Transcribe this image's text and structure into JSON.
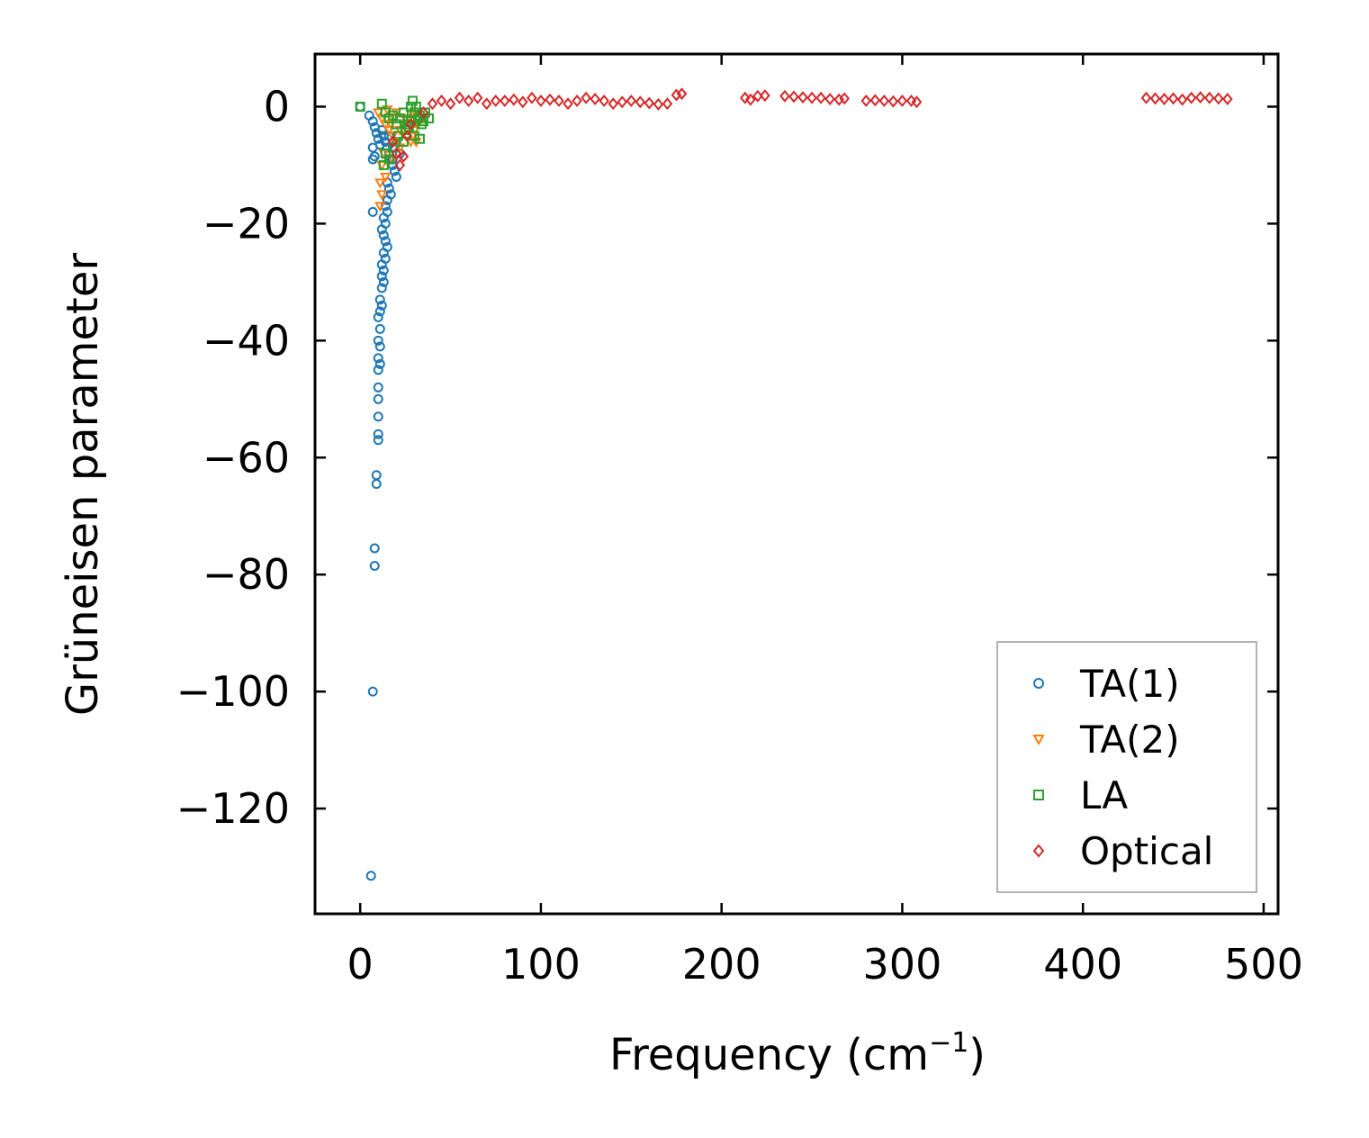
{
  "chart_data": {
    "type": "scatter",
    "xlabel": "Frequency (cm",
    "xlabel_exponent": "−1",
    "xlabel_suffix": ")",
    "ylabel": "Grüneisen parameter",
    "xlim": [
      -25,
      508
    ],
    "ylim": [
      -138,
      9
    ],
    "xticks": [
      0,
      100,
      200,
      300,
      400,
      500
    ],
    "yticks": [
      0,
      -20,
      -40,
      -60,
      -80,
      -100,
      -120
    ],
    "grid": false,
    "legend_position": "bottom-right",
    "series": [
      {
        "name": "TA(1)",
        "color": "#1f77b4",
        "marker": "circle",
        "points": [
          [
            0,
            0
          ],
          [
            5,
            -1.5
          ],
          [
            7,
            -2.5
          ],
          [
            8,
            -3.5
          ],
          [
            9,
            -4.5
          ],
          [
            10,
            -5.5
          ],
          [
            11,
            -6.5
          ],
          [
            7,
            -7
          ],
          [
            8,
            -8.5
          ],
          [
            7,
            -9
          ],
          [
            12,
            -4
          ],
          [
            13,
            -5
          ],
          [
            14,
            -6
          ],
          [
            15,
            -7
          ],
          [
            16,
            -8
          ],
          [
            17,
            -9
          ],
          [
            18,
            -10
          ],
          [
            19,
            -11
          ],
          [
            20,
            -12
          ],
          [
            15,
            -13
          ],
          [
            16,
            -14
          ],
          [
            17,
            -15
          ],
          [
            15,
            -16
          ],
          [
            14,
            -17
          ],
          [
            15,
            -18
          ],
          [
            13,
            -19
          ],
          [
            14,
            -20
          ],
          [
            12,
            -21
          ],
          [
            13,
            -22
          ],
          [
            14,
            -23
          ],
          [
            15,
            -24
          ],
          [
            13,
            -25
          ],
          [
            14,
            -26
          ],
          [
            12,
            -27
          ],
          [
            13,
            -28
          ],
          [
            12,
            -29
          ],
          [
            13,
            -30
          ],
          [
            12,
            -31
          ],
          [
            11,
            -33
          ],
          [
            12,
            -34
          ],
          [
            11,
            -35
          ],
          [
            10,
            -36
          ],
          [
            7,
            -18
          ],
          [
            11,
            -38
          ],
          [
            10,
            -40
          ],
          [
            11,
            -41
          ],
          [
            10,
            -43
          ],
          [
            11,
            -44
          ],
          [
            10,
            -45
          ],
          [
            10,
            -48
          ],
          [
            10,
            -50
          ],
          [
            10,
            -53
          ],
          [
            10,
            -56
          ],
          [
            10,
            -57
          ],
          [
            9,
            -63
          ],
          [
            9,
            -64.5
          ],
          [
            8,
            -75.5
          ],
          [
            8,
            -78.5
          ],
          [
            7,
            -100
          ],
          [
            6,
            -131.5
          ],
          [
            18,
            -9
          ],
          [
            22,
            -8
          ],
          [
            20,
            -6
          ],
          [
            16,
            -5
          ],
          [
            19,
            -7
          ]
        ]
      },
      {
        "name": "TA(2)",
        "color": "#ff7f0e",
        "marker": "triangle-down",
        "points": [
          [
            10,
            -1
          ],
          [
            12,
            -2
          ],
          [
            14,
            -3
          ],
          [
            16,
            -4
          ],
          [
            18,
            -5
          ],
          [
            20,
            -6
          ],
          [
            22,
            -4
          ],
          [
            24,
            -3
          ],
          [
            26,
            -5
          ],
          [
            28,
            -6
          ],
          [
            30,
            -4
          ],
          [
            32,
            -3
          ],
          [
            25,
            -2
          ],
          [
            20,
            -1
          ],
          [
            15,
            -0.5
          ],
          [
            13,
            -8
          ],
          [
            12,
            -10
          ],
          [
            11,
            -13
          ],
          [
            12,
            -15
          ],
          [
            11,
            -17
          ],
          [
            14,
            -12
          ],
          [
            18,
            -9
          ],
          [
            22,
            -7
          ],
          [
            27,
            -2
          ],
          [
            30,
            -1.5
          ],
          [
            35,
            -2
          ],
          [
            29,
            -5
          ],
          [
            31,
            -6
          ],
          [
            17,
            -3
          ],
          [
            19,
            -2
          ]
        ]
      },
      {
        "name": "LA",
        "color": "#2ca02c",
        "marker": "square",
        "points": [
          [
            0,
            0
          ],
          [
            12,
            0.5
          ],
          [
            14,
            -1
          ],
          [
            16,
            -2
          ],
          [
            18,
            -1.5
          ],
          [
            20,
            -3
          ],
          [
            22,
            -2
          ],
          [
            24,
            -1
          ],
          [
            26,
            -3
          ],
          [
            28,
            0
          ],
          [
            30,
            -1
          ],
          [
            32,
            -2
          ],
          [
            34,
            -3
          ],
          [
            36,
            -1
          ],
          [
            38,
            -2
          ],
          [
            29,
            1
          ],
          [
            31,
            0
          ],
          [
            33,
            -1.5
          ],
          [
            35,
            -2.5
          ],
          [
            25,
            -4
          ],
          [
            27,
            -3.5
          ],
          [
            30,
            -5
          ],
          [
            33,
            -5.5
          ],
          [
            21,
            -5
          ],
          [
            18,
            -7
          ],
          [
            16,
            -9
          ],
          [
            13,
            -10
          ],
          [
            14,
            -8
          ],
          [
            24,
            -6
          ],
          [
            28,
            -2.5
          ]
        ]
      },
      {
        "name": "Optical",
        "color": "#d62728",
        "marker": "diamond",
        "points": [
          [
            18,
            -6
          ],
          [
            20,
            -8
          ],
          [
            22,
            -10
          ],
          [
            24,
            -8.5
          ],
          [
            26,
            -5
          ],
          [
            28,
            -3
          ],
          [
            35,
            -1
          ],
          [
            40,
            0.5
          ],
          [
            45,
            1
          ],
          [
            50,
            0.5
          ],
          [
            55,
            1.5
          ],
          [
            60,
            1
          ],
          [
            65,
            1.5
          ],
          [
            70,
            0.5
          ],
          [
            75,
            1
          ],
          [
            80,
            1
          ],
          [
            85,
            1.2
          ],
          [
            90,
            0.8
          ],
          [
            95,
            1.5
          ],
          [
            100,
            1
          ],
          [
            105,
            1.2
          ],
          [
            110,
            1
          ],
          [
            115,
            0.5
          ],
          [
            120,
            1
          ],
          [
            125,
            1.5
          ],
          [
            130,
            1.3
          ],
          [
            135,
            1
          ],
          [
            140,
            0.5
          ],
          [
            145,
            0.8
          ],
          [
            150,
            1
          ],
          [
            155,
            0.8
          ],
          [
            160,
            0.6
          ],
          [
            165,
            0.4
          ],
          [
            170,
            0.5
          ],
          [
            175,
            2
          ],
          [
            178,
            2.2
          ],
          [
            213,
            1.5
          ],
          [
            216,
            1.2
          ],
          [
            220,
            1.8
          ],
          [
            224,
            1.9
          ],
          [
            235,
            1.8
          ],
          [
            240,
            1.7
          ],
          [
            245,
            1.6
          ],
          [
            250,
            1.5
          ],
          [
            255,
            1.5
          ],
          [
            260,
            1.3
          ],
          [
            265,
            1.2
          ],
          [
            268,
            1.4
          ],
          [
            280,
            1
          ],
          [
            285,
            1.1
          ],
          [
            290,
            1
          ],
          [
            295,
            0.9
          ],
          [
            300,
            1
          ],
          [
            305,
            1
          ],
          [
            308,
            0.8
          ],
          [
            435,
            1.5
          ],
          [
            440,
            1.4
          ],
          [
            445,
            1.3
          ],
          [
            450,
            1.4
          ],
          [
            455,
            1.2
          ],
          [
            460,
            1.5
          ],
          [
            465,
            1.6
          ],
          [
            470,
            1.5
          ],
          [
            475,
            1.4
          ],
          [
            480,
            1.3
          ]
        ]
      }
    ]
  }
}
